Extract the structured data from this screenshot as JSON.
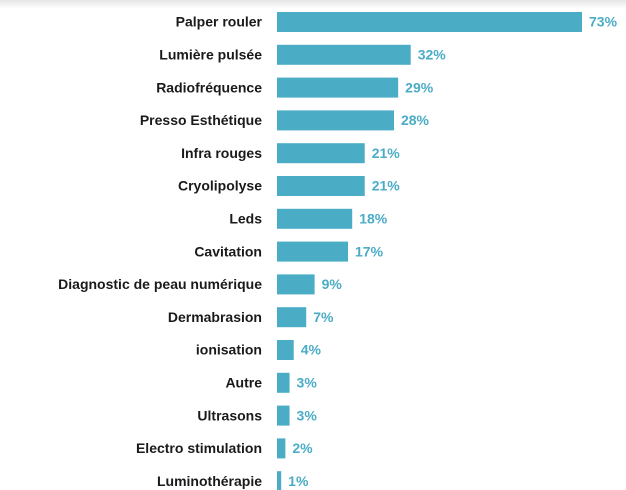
{
  "chart_data": {
    "type": "bar",
    "orientation": "horizontal",
    "categories": [
      "Palper rouler",
      "Lumière pulsée",
      "Radiofréquence",
      "Presso Esthétique",
      "Infra rouges",
      "Cryolipolyse",
      "Leds",
      "Cavitation",
      "Diagnostic de peau numérique",
      "Dermabrasion",
      "ionisation",
      "Autre",
      "Ultrasons",
      "Electro stimulation",
      "Luminothérapie"
    ],
    "values": [
      73,
      32,
      29,
      28,
      21,
      21,
      18,
      17,
      9,
      7,
      4,
      3,
      3,
      2,
      1
    ],
    "value_labels": [
      "73%",
      "32%",
      "29%",
      "28%",
      "21%",
      "21%",
      "18%",
      "17%",
      "9%",
      "7%",
      "4%",
      "3%",
      "3%",
      "2%",
      "1%"
    ],
    "color": "#4bacc6"
  }
}
